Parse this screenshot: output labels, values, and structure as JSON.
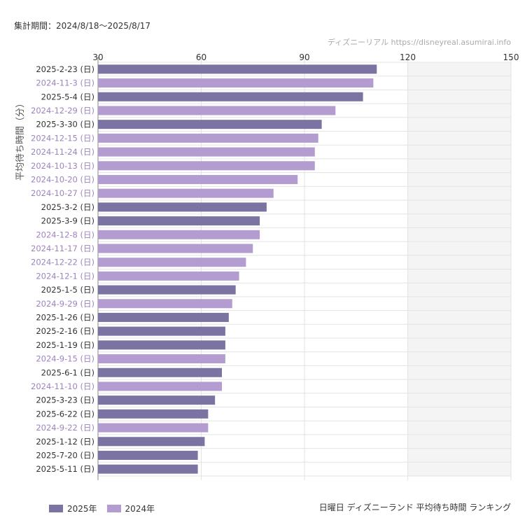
{
  "header": {
    "period": "集計期間：2024/8/18〜2025/8/17",
    "source": "ディズニーリアル https://disneyreal.asumirai.info"
  },
  "caption": "日曜日 ディズニーランド 平均待ち時間 ランキング",
  "colors": {
    "2025": "#7b74a2",
    "2024": "#b39ccf",
    "label2025": "#333333",
    "label2024": "#9d84bf",
    "grid": "#e3e3e3",
    "shade": "#f4f4f4"
  },
  "chart_data": {
    "type": "bar",
    "orientation": "horizontal",
    "ylabel": "平均待ち時間（分）",
    "xlim": [
      30,
      150
    ],
    "xticks": [
      "30",
      "60",
      "90",
      "120",
      "150"
    ],
    "categories": [
      "2025-2-23 (日)",
      "2024-11-3 (日)",
      "2025-5-4 (日)",
      "2024-12-29 (日)",
      "2025-3-30 (日)",
      "2024-12-15 (日)",
      "2024-11-24 (日)",
      "2024-10-13 (日)",
      "2024-10-20 (日)",
      "2024-10-27 (日)",
      "2025-3-2 (日)",
      "2025-3-9 (日)",
      "2024-12-8 (日)",
      "2024-11-17 (日)",
      "2024-12-22 (日)",
      "2024-12-1 (日)",
      "2025-1-5 (日)",
      "2024-9-29 (日)",
      "2025-1-26 (日)",
      "2025-2-16 (日)",
      "2025-1-19 (日)",
      "2024-9-15 (日)",
      "2025-6-1 (日)",
      "2024-11-10 (日)",
      "2025-3-23 (日)",
      "2025-6-22 (日)",
      "2024-9-22 (日)",
      "2025-1-12 (日)",
      "2025-7-20 (日)",
      "2025-5-11 (日)"
    ],
    "values": [
      111,
      110,
      107,
      99,
      95,
      94,
      93,
      93,
      88,
      81,
      79,
      77,
      77,
      75,
      73,
      71,
      70,
      69,
      68,
      67,
      67,
      67,
      66,
      66,
      64,
      62,
      62,
      61,
      59,
      59
    ],
    "years": [
      "2025",
      "2024",
      "2025",
      "2024",
      "2025",
      "2024",
      "2024",
      "2024",
      "2024",
      "2024",
      "2025",
      "2025",
      "2024",
      "2024",
      "2024",
      "2024",
      "2025",
      "2024",
      "2025",
      "2025",
      "2025",
      "2024",
      "2025",
      "2024",
      "2025",
      "2025",
      "2024",
      "2025",
      "2025",
      "2025"
    ],
    "legend": [
      {
        "name": "2025年",
        "key": "2025"
      },
      {
        "name": "2024年",
        "key": "2024"
      }
    ],
    "legend_position": "bottom-left",
    "grid": true
  }
}
